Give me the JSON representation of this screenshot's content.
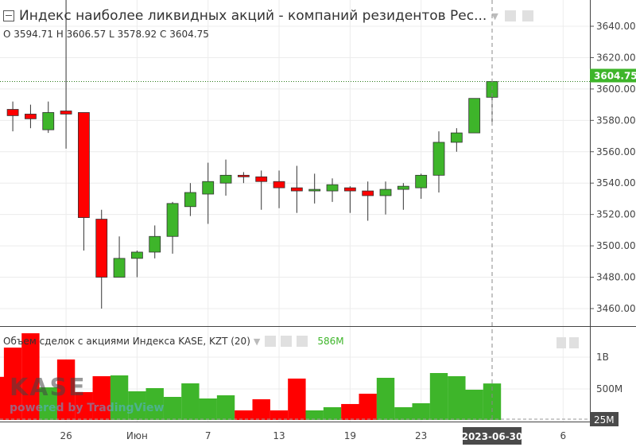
{
  "legend": {
    "title": "Индекс наиболее ликвидных акций - компаний резидентов Рес...",
    "o_label": "O",
    "o": "3594.71",
    "h_label": "H",
    "h": "3606.57",
    "l_label": "L",
    "l": "3578.92",
    "c_label": "C",
    "c": "3604.75"
  },
  "volume_legend": {
    "title": "Объем сделок с акциями Индекса KASE, KZT (20)",
    "value": "586M"
  },
  "watermark": {
    "logo": "KASE",
    "powered": "powered by TradingView"
  },
  "colors": {
    "up": "#3eb52a",
    "down": "#ff0000",
    "last_price": "#3eb52a",
    "axis_label_bg": "#4a4a4a"
  },
  "chart_data": {
    "type": "candlestick",
    "price_ticks": [
      "3640.00",
      "3620.00",
      "3600.00",
      "3580.00",
      "3560.00",
      "3540.00",
      "3520.00",
      "3500.00",
      "3480.00",
      "3460.00"
    ],
    "price_range": [
      3455,
      3650
    ],
    "last_price": "3604.75",
    "volume_ticks": [
      "1B",
      "500M"
    ],
    "volume_min_label": "25M",
    "x_labels": [
      {
        "i": 4,
        "t": "26"
      },
      {
        "i": 8,
        "t": "Июн"
      },
      {
        "i": 12,
        "t": "7"
      },
      {
        "i": 16,
        "t": "13"
      },
      {
        "i": 20,
        "t": "19"
      },
      {
        "i": 24,
        "t": "23"
      },
      {
        "i": 32,
        "t": "6"
      }
    ],
    "crosshair_label": "2023-06-30",
    "candles": [
      [
        3587,
        3592,
        3573,
        3583
      ],
      [
        3584,
        3590,
        3575,
        3581
      ],
      [
        3574,
        3592,
        3572,
        3585
      ],
      [
        3586,
        3665,
        3562,
        3584
      ],
      [
        3585,
        3585,
        3497,
        3518
      ],
      [
        3517,
        3523,
        3460,
        3480
      ],
      [
        3480,
        3506,
        3480,
        3492
      ],
      [
        3492,
        3497,
        3480,
        3496
      ],
      [
        3496,
        3513,
        3492,
        3506
      ],
      [
        3506,
        3528,
        3495,
        3527
      ],
      [
        3525,
        3540,
        3519,
        3534
      ],
      [
        3533,
        3553,
        3514,
        3541
      ],
      [
        3540,
        3555,
        3532,
        3545
      ],
      [
        3545,
        3547,
        3540,
        3544
      ],
      [
        3544,
        3548,
        3523,
        3541
      ],
      [
        3541,
        3548,
        3524,
        3537
      ],
      [
        3537,
        3551,
        3521,
        3535
      ],
      [
        3535,
        3546,
        3527,
        3536
      ],
      [
        3535,
        3543,
        3528,
        3539
      ],
      [
        3537,
        3538,
        3521,
        3535
      ],
      [
        3535,
        3541,
        3516,
        3532
      ],
      [
        3532,
        3541,
        3520,
        3536
      ],
      [
        3536,
        3540,
        3523,
        3538
      ],
      [
        3537,
        3546,
        3530,
        3545
      ],
      [
        3545,
        3573,
        3534,
        3566
      ],
      [
        3566,
        3575,
        3560,
        3572
      ],
      [
        3572,
        3594,
        3572,
        3594
      ],
      [
        3594.71,
        3606.57,
        3578.92,
        3604.75
      ]
    ],
    "volumes_m": [
      1150,
      1375,
      525,
      963,
      450,
      700,
      713,
      463,
      513,
      375,
      588,
      350,
      400,
      163,
      338,
      163,
      663,
      163,
      213,
      263,
      425,
      675,
      213,
      275,
      750,
      700,
      488,
      586
    ]
  }
}
